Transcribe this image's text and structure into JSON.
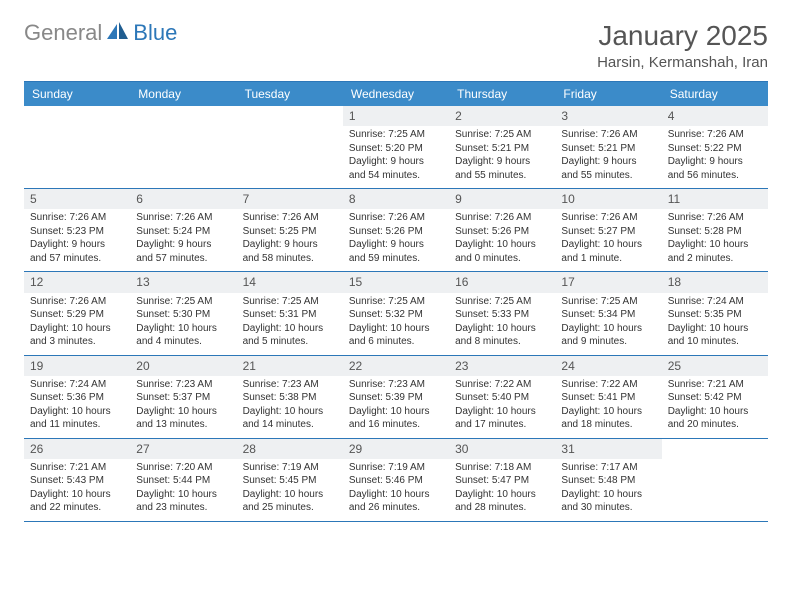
{
  "logo": {
    "text1": "General",
    "text2": "Blue"
  },
  "title": "January 2025",
  "location": "Harsin, Kermanshah, Iran",
  "colors": {
    "header_bg": "#3b8bc9",
    "header_text": "#ffffff",
    "rule": "#2c77b8",
    "daynum_bg": "#eef0f2",
    "text": "#333333",
    "logo_gray": "#888888",
    "logo_blue": "#2c77b8",
    "background": "#ffffff"
  },
  "dayNames": [
    "Sunday",
    "Monday",
    "Tuesday",
    "Wednesday",
    "Thursday",
    "Friday",
    "Saturday"
  ],
  "weeks": [
    [
      {
        "n": "",
        "sr": "",
        "ss": "",
        "dl1": "",
        "dl2": ""
      },
      {
        "n": "",
        "sr": "",
        "ss": "",
        "dl1": "",
        "dl2": ""
      },
      {
        "n": "",
        "sr": "",
        "ss": "",
        "dl1": "",
        "dl2": ""
      },
      {
        "n": "1",
        "sr": "Sunrise: 7:25 AM",
        "ss": "Sunset: 5:20 PM",
        "dl1": "Daylight: 9 hours",
        "dl2": "and 54 minutes."
      },
      {
        "n": "2",
        "sr": "Sunrise: 7:25 AM",
        "ss": "Sunset: 5:21 PM",
        "dl1": "Daylight: 9 hours",
        "dl2": "and 55 minutes."
      },
      {
        "n": "3",
        "sr": "Sunrise: 7:26 AM",
        "ss": "Sunset: 5:21 PM",
        "dl1": "Daylight: 9 hours",
        "dl2": "and 55 minutes."
      },
      {
        "n": "4",
        "sr": "Sunrise: 7:26 AM",
        "ss": "Sunset: 5:22 PM",
        "dl1": "Daylight: 9 hours",
        "dl2": "and 56 minutes."
      }
    ],
    [
      {
        "n": "5",
        "sr": "Sunrise: 7:26 AM",
        "ss": "Sunset: 5:23 PM",
        "dl1": "Daylight: 9 hours",
        "dl2": "and 57 minutes."
      },
      {
        "n": "6",
        "sr": "Sunrise: 7:26 AM",
        "ss": "Sunset: 5:24 PM",
        "dl1": "Daylight: 9 hours",
        "dl2": "and 57 minutes."
      },
      {
        "n": "7",
        "sr": "Sunrise: 7:26 AM",
        "ss": "Sunset: 5:25 PM",
        "dl1": "Daylight: 9 hours",
        "dl2": "and 58 minutes."
      },
      {
        "n": "8",
        "sr": "Sunrise: 7:26 AM",
        "ss": "Sunset: 5:26 PM",
        "dl1": "Daylight: 9 hours",
        "dl2": "and 59 minutes."
      },
      {
        "n": "9",
        "sr": "Sunrise: 7:26 AM",
        "ss": "Sunset: 5:26 PM",
        "dl1": "Daylight: 10 hours",
        "dl2": "and 0 minutes."
      },
      {
        "n": "10",
        "sr": "Sunrise: 7:26 AM",
        "ss": "Sunset: 5:27 PM",
        "dl1": "Daylight: 10 hours",
        "dl2": "and 1 minute."
      },
      {
        "n": "11",
        "sr": "Sunrise: 7:26 AM",
        "ss": "Sunset: 5:28 PM",
        "dl1": "Daylight: 10 hours",
        "dl2": "and 2 minutes."
      }
    ],
    [
      {
        "n": "12",
        "sr": "Sunrise: 7:26 AM",
        "ss": "Sunset: 5:29 PM",
        "dl1": "Daylight: 10 hours",
        "dl2": "and 3 minutes."
      },
      {
        "n": "13",
        "sr": "Sunrise: 7:25 AM",
        "ss": "Sunset: 5:30 PM",
        "dl1": "Daylight: 10 hours",
        "dl2": "and 4 minutes."
      },
      {
        "n": "14",
        "sr": "Sunrise: 7:25 AM",
        "ss": "Sunset: 5:31 PM",
        "dl1": "Daylight: 10 hours",
        "dl2": "and 5 minutes."
      },
      {
        "n": "15",
        "sr": "Sunrise: 7:25 AM",
        "ss": "Sunset: 5:32 PM",
        "dl1": "Daylight: 10 hours",
        "dl2": "and 6 minutes."
      },
      {
        "n": "16",
        "sr": "Sunrise: 7:25 AM",
        "ss": "Sunset: 5:33 PM",
        "dl1": "Daylight: 10 hours",
        "dl2": "and 8 minutes."
      },
      {
        "n": "17",
        "sr": "Sunrise: 7:25 AM",
        "ss": "Sunset: 5:34 PM",
        "dl1": "Daylight: 10 hours",
        "dl2": "and 9 minutes."
      },
      {
        "n": "18",
        "sr": "Sunrise: 7:24 AM",
        "ss": "Sunset: 5:35 PM",
        "dl1": "Daylight: 10 hours",
        "dl2": "and 10 minutes."
      }
    ],
    [
      {
        "n": "19",
        "sr": "Sunrise: 7:24 AM",
        "ss": "Sunset: 5:36 PM",
        "dl1": "Daylight: 10 hours",
        "dl2": "and 11 minutes."
      },
      {
        "n": "20",
        "sr": "Sunrise: 7:23 AM",
        "ss": "Sunset: 5:37 PM",
        "dl1": "Daylight: 10 hours",
        "dl2": "and 13 minutes."
      },
      {
        "n": "21",
        "sr": "Sunrise: 7:23 AM",
        "ss": "Sunset: 5:38 PM",
        "dl1": "Daylight: 10 hours",
        "dl2": "and 14 minutes."
      },
      {
        "n": "22",
        "sr": "Sunrise: 7:23 AM",
        "ss": "Sunset: 5:39 PM",
        "dl1": "Daylight: 10 hours",
        "dl2": "and 16 minutes."
      },
      {
        "n": "23",
        "sr": "Sunrise: 7:22 AM",
        "ss": "Sunset: 5:40 PM",
        "dl1": "Daylight: 10 hours",
        "dl2": "and 17 minutes."
      },
      {
        "n": "24",
        "sr": "Sunrise: 7:22 AM",
        "ss": "Sunset: 5:41 PM",
        "dl1": "Daylight: 10 hours",
        "dl2": "and 18 minutes."
      },
      {
        "n": "25",
        "sr": "Sunrise: 7:21 AM",
        "ss": "Sunset: 5:42 PM",
        "dl1": "Daylight: 10 hours",
        "dl2": "and 20 minutes."
      }
    ],
    [
      {
        "n": "26",
        "sr": "Sunrise: 7:21 AM",
        "ss": "Sunset: 5:43 PM",
        "dl1": "Daylight: 10 hours",
        "dl2": "and 22 minutes."
      },
      {
        "n": "27",
        "sr": "Sunrise: 7:20 AM",
        "ss": "Sunset: 5:44 PM",
        "dl1": "Daylight: 10 hours",
        "dl2": "and 23 minutes."
      },
      {
        "n": "28",
        "sr": "Sunrise: 7:19 AM",
        "ss": "Sunset: 5:45 PM",
        "dl1": "Daylight: 10 hours",
        "dl2": "and 25 minutes."
      },
      {
        "n": "29",
        "sr": "Sunrise: 7:19 AM",
        "ss": "Sunset: 5:46 PM",
        "dl1": "Daylight: 10 hours",
        "dl2": "and 26 minutes."
      },
      {
        "n": "30",
        "sr": "Sunrise: 7:18 AM",
        "ss": "Sunset: 5:47 PM",
        "dl1": "Daylight: 10 hours",
        "dl2": "and 28 minutes."
      },
      {
        "n": "31",
        "sr": "Sunrise: 7:17 AM",
        "ss": "Sunset: 5:48 PM",
        "dl1": "Daylight: 10 hours",
        "dl2": "and 30 minutes."
      },
      {
        "n": "",
        "sr": "",
        "ss": "",
        "dl1": "",
        "dl2": ""
      }
    ]
  ]
}
